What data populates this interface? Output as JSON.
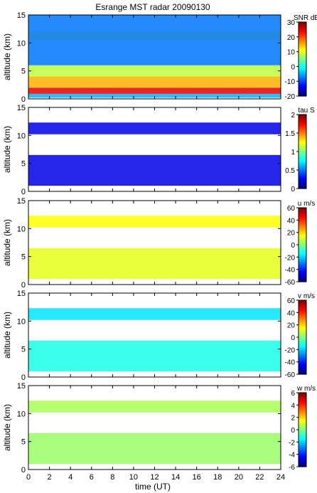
{
  "title": "Esrange MST radar 20090130",
  "xlabel": "time (UT)",
  "ylabel": "altitude (km)",
  "chart_data": [
    {
      "type": "heatmap",
      "title": "Esrange MST radar 20090130",
      "ylabel": "altitude (km)",
      "x": [
        0,
        2,
        4,
        6,
        8,
        10,
        12,
        14,
        16,
        18,
        20,
        22,
        24
      ],
      "y_ticks": [
        0,
        5,
        10,
        15
      ],
      "xlim": [
        0,
        24
      ],
      "ylim": [
        0,
        15
      ],
      "colorbar": {
        "label": "SNR dB",
        "min": -20,
        "max": 30,
        "ticks": [
          30,
          20,
          10,
          0,
          -10,
          -20
        ]
      },
      "layers": [
        {
          "name": "",
          "y_km": [
            0.2,
            0.9
          ],
          "level": -5,
          "x_range": [
            0,
            24
          ]
        },
        {
          "name": "",
          "y_km": [
            0.9,
            2.0
          ],
          "level": 25,
          "x_range": [
            0,
            24
          ]
        },
        {
          "name": "",
          "y_km": [
            2.0,
            4.0
          ],
          "level": 15,
          "x_range": [
            0,
            24
          ]
        },
        {
          "name": "",
          "y_km": [
            4.0,
            6.0
          ],
          "level": 8,
          "x_range": [
            0,
            24
          ]
        },
        {
          "name": "",
          "y_km": [
            10.5,
            12.0
          ],
          "level": 10,
          "x_range": [
            0,
            24
          ]
        },
        {
          "name": "",
          "y_km": [
            6.0,
            15.0
          ],
          "level": -8,
          "x_range": [
            0,
            24
          ]
        }
      ]
    },
    {
      "type": "heatmap",
      "ylabel": "altitude (km)",
      "x": [
        0,
        2,
        4,
        6,
        8,
        10,
        12,
        14,
        16,
        18,
        20,
        22,
        24
      ],
      "y_ticks": [
        0,
        5,
        10,
        15
      ],
      "xlim": [
        0,
        24
      ],
      "ylim": [
        0,
        15
      ],
      "colorbar": {
        "label": "tau S",
        "min": 0,
        "max": 2,
        "ticks": [
          2,
          1.5,
          1,
          0.5,
          0
        ]
      },
      "layers": [
        {
          "name": "",
          "y_km": [
            10.2,
            12.3
          ],
          "level": 0.2,
          "x_range": [
            0,
            24
          ]
        },
        {
          "name": "",
          "y_km": [
            1.0,
            6.5
          ],
          "level": 0.2,
          "x_range": [
            0,
            24
          ]
        }
      ]
    },
    {
      "type": "heatmap",
      "ylabel": "altitude (km)",
      "x": [
        0,
        2,
        4,
        6,
        8,
        10,
        12,
        14,
        16,
        18,
        20,
        22,
        24
      ],
      "y_ticks": [
        0,
        5,
        10,
        15
      ],
      "xlim": [
        0,
        24
      ],
      "ylim": [
        0,
        15
      ],
      "colorbar": {
        "label": "u m/s",
        "min": -60,
        "max": 60,
        "ticks": [
          60,
          40,
          20,
          0,
          -20,
          -40,
          -60
        ]
      },
      "layers": [
        {
          "name": "",
          "y_km": [
            10.2,
            12.3
          ],
          "level": 15,
          "x_range": [
            0,
            24
          ]
        },
        {
          "name": "",
          "y_km": [
            1.0,
            6.5
          ],
          "level": 12,
          "x_range": [
            0,
            24
          ]
        }
      ]
    },
    {
      "type": "heatmap",
      "ylabel": "altitude (km)",
      "x": [
        0,
        2,
        4,
        6,
        8,
        10,
        12,
        14,
        16,
        18,
        20,
        22,
        24
      ],
      "y_ticks": [
        0,
        5,
        10,
        15
      ],
      "xlim": [
        0,
        24
      ],
      "ylim": [
        0,
        15
      ],
      "colorbar": {
        "label": "v m/s",
        "min": -60,
        "max": 60,
        "ticks": [
          60,
          40,
          20,
          0,
          -20,
          -40,
          -60
        ]
      },
      "layers": [
        {
          "name": "",
          "y_km": [
            10.2,
            12.3
          ],
          "level": -18,
          "x_range": [
            0,
            24
          ]
        },
        {
          "name": "",
          "y_km": [
            1.0,
            6.5
          ],
          "level": -12,
          "x_range": [
            0,
            24
          ]
        }
      ]
    },
    {
      "type": "heatmap",
      "xlabel": "time (UT)",
      "ylabel": "altitude (km)",
      "x": [
        0,
        2,
        4,
        6,
        8,
        10,
        12,
        14,
        16,
        18,
        20,
        22,
        24
      ],
      "y_ticks": [
        0,
        5,
        10,
        15
      ],
      "xlim": [
        0,
        24
      ],
      "ylim": [
        0,
        15
      ],
      "colorbar": {
        "label": "w m/s",
        "min": -6,
        "max": 6,
        "ticks": [
          6,
          4,
          2,
          0,
          -2,
          -4,
          -6
        ]
      },
      "layers": [
        {
          "name": "",
          "y_km": [
            10.2,
            12.3
          ],
          "level": 0.5,
          "x_range": [
            0,
            24
          ]
        },
        {
          "name": "",
          "y_km": [
            1.0,
            6.5
          ],
          "level": 0.3,
          "x_range": [
            0,
            24
          ]
        }
      ]
    }
  ],
  "colors": {
    "axis": "#000000",
    "background": "#ffffff"
  }
}
